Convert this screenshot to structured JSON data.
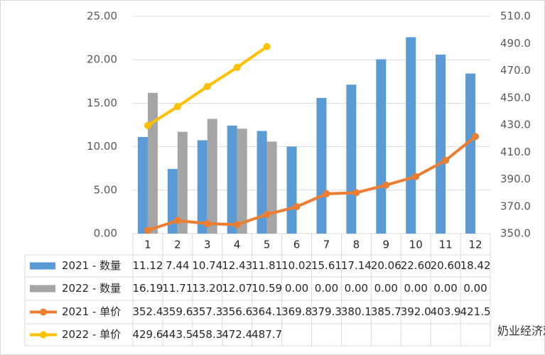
{
  "chart_data": {
    "type": "bar_line_table",
    "categories": [
      "1",
      "2",
      "3",
      "4",
      "5",
      "6",
      "7",
      "8",
      "9",
      "10",
      "11",
      "12"
    ],
    "ylim": [
      0,
      25
    ],
    "yticks": [
      {
        "value": 0,
        "label": "0.00"
      },
      {
        "value": 5,
        "label": "5.00"
      },
      {
        "value": 10,
        "label": "10.00"
      },
      {
        "value": 15,
        "label": "15.00"
      },
      {
        "value": 20,
        "label": "20.00"
      },
      {
        "value": 25,
        "label": "25.00"
      }
    ],
    "y2lim": [
      350,
      510
    ],
    "y2ticks": [
      {
        "value": 350,
        "label": "350.0"
      },
      {
        "value": 370,
        "label": "370.0"
      },
      {
        "value": 390,
        "label": "390.0"
      },
      {
        "value": 410,
        "label": "410.0"
      },
      {
        "value": 430,
        "label": "430.0"
      },
      {
        "value": 450,
        "label": "450.0"
      },
      {
        "value": 470,
        "label": "470.0"
      },
      {
        "value": 490,
        "label": "490.0"
      },
      {
        "value": 510,
        "label": "510.0"
      }
    ],
    "grid": true,
    "series": [
      {
        "name": "2021 - 数量",
        "kind": "bar",
        "color": "#5b9bd5",
        "values": [
          11.12,
          7.44,
          10.74,
          12.43,
          11.81,
          10.02,
          15.61,
          17.14,
          20.06,
          22.6,
          20.6,
          18.42
        ],
        "value_labels": [
          "11.12",
          "7.44",
          "10.74",
          "12.43",
          "11.81",
          "10.02",
          "15.61",
          "17.14",
          "20.06",
          "22.60",
          "20.60",
          "18.42"
        ]
      },
      {
        "name": "2022 - 数量",
        "kind": "bar",
        "color": "#a5a5a5",
        "values": [
          16.19,
          11.71,
          13.2,
          12.07,
          10.59,
          0,
          0,
          0,
          0,
          0,
          0,
          0
        ],
        "value_labels": [
          "16.19",
          "11.71",
          "13.20",
          "12.07",
          "10.59",
          "0.00",
          "0.00",
          "0.00",
          "0.00",
          "0.00",
          "0.00",
          "0.00"
        ]
      },
      {
        "name": "2021 - 单价",
        "kind": "line",
        "axis": "y2",
        "color": "#ed7d31",
        "values": [
          352.4,
          359.6,
          357.3,
          356.6,
          364.1,
          369.8,
          379.3,
          380.1,
          385.7,
          392.0,
          403.9,
          421.5
        ],
        "value_labels": [
          "352.4",
          "359.6",
          "357.3",
          "356.6",
          "364.1",
          "369.8",
          "379.3",
          "380.1",
          "385.7",
          "392.0",
          "403.9",
          "421.5"
        ]
      },
      {
        "name": "2022 - 单价",
        "kind": "line",
        "axis": "y2",
        "color": "#ffc000",
        "values": [
          429.6,
          443.5,
          458.3,
          472.4,
          487.7,
          null,
          null,
          null,
          null,
          null,
          null,
          null
        ],
        "value_labels": [
          "429.6",
          "443.5",
          "458.3",
          "472.4",
          "487.7",
          null,
          null,
          null,
          null,
          null,
          null,
          null
        ]
      }
    ],
    "watermark": "奶业经济观察"
  }
}
